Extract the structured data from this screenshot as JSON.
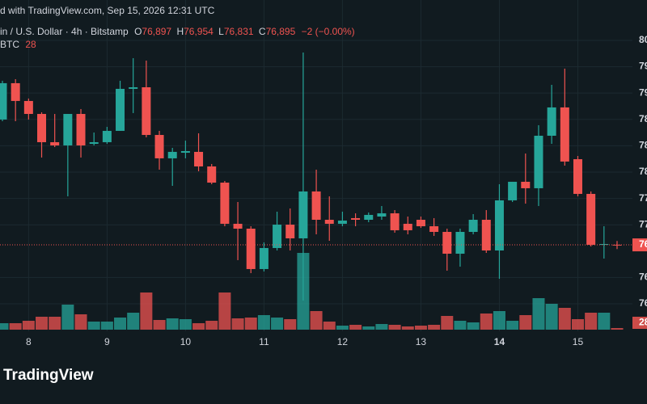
{
  "chart_data": {
    "type": "candlestick",
    "attribution": "d with TradingView.com, Sep 15, 2026 12:31 UTC",
    "symbol": "in / U.S. Dollar · 4h · Bitstamp",
    "ohlc_prefixes": [
      "O",
      "H",
      "L",
      "C"
    ],
    "ohlc_values": [
      "76,897",
      "76,954",
      "76,831",
      "76,895"
    ],
    "change": "−2 (−0.00%)",
    "volume_name": "BTC",
    "price_label": "76",
    "logo": "TradingView",
    "up_color": "#26a69a",
    "down_color": "#ef5350",
    "grid": true,
    "categories": [
      null,
      null,
      "8",
      null,
      null,
      null,
      null,
      null,
      "9",
      null,
      null,
      null,
      null,
      null,
      "10",
      null,
      null,
      null,
      null,
      null,
      "11",
      null,
      null,
      null,
      null,
      null,
      "12",
      null,
      null,
      null,
      null,
      null,
      "13",
      null,
      null,
      null,
      null,
      null,
      "14",
      null,
      null,
      null,
      null,
      null,
      "15",
      null,
      null,
      null
    ],
    "candles": [
      [
        78798,
        79387,
        78773,
        79350
      ],
      [
        79350,
        79411,
        78773,
        79080
      ],
      [
        79080,
        79117,
        78798,
        78883
      ],
      [
        78883,
        78908,
        78221,
        78454
      ],
      [
        78454,
        78883,
        78380,
        78405
      ],
      [
        78405,
        78883,
        77632,
        78883
      ],
      [
        78883,
        78957,
        78221,
        78405
      ],
      [
        78429,
        78601,
        78405,
        78454
      ],
      [
        78454,
        78687,
        78429,
        78626
      ],
      [
        78626,
        79387,
        78626,
        79264
      ],
      [
        79264,
        79730,
        78896,
        79288
      ],
      [
        79288,
        79693,
        78528,
        78564
      ],
      [
        78564,
        78626,
        78037,
        78209
      ],
      [
        78209,
        78368,
        77791,
        78307
      ],
      [
        78294,
        78478,
        78209,
        78319
      ],
      [
        78307,
        78589,
        78012,
        78086
      ],
      [
        78086,
        78123,
        77816,
        77840
      ],
      [
        77840,
        77865,
        77178,
        77215
      ],
      [
        77215,
        77546,
        76663,
        77141
      ],
      [
        77141,
        77178,
        76466,
        76528
      ],
      [
        76528,
        76933,
        76491,
        76847
      ],
      [
        76847,
        77399,
        76810,
        77202
      ],
      [
        77202,
        77448,
        76810,
        76994
      ],
      [
        76994,
        79816,
        76049,
        77706
      ],
      [
        77706,
        78037,
        77055,
        77276
      ],
      [
        77276,
        77632,
        76957,
        77215
      ],
      [
        77215,
        77399,
        77178,
        77264
      ],
      [
        77301,
        77374,
        77178,
        77276
      ],
      [
        77276,
        77387,
        77239,
        77350
      ],
      [
        77325,
        77485,
        77276,
        77374
      ],
      [
        77374,
        77423,
        77080,
        77117
      ],
      [
        77215,
        77325,
        77055,
        77117
      ],
      [
        77276,
        77325,
        77153,
        77178
      ],
      [
        77178,
        77301,
        77031,
        77092
      ],
      [
        77092,
        77141,
        76503,
        76761
      ],
      [
        76761,
        77141,
        76564,
        77092
      ],
      [
        77092,
        77362,
        77055,
        77276
      ],
      [
        77276,
        77423,
        76773,
        76810
      ],
      [
        76810,
        77816,
        76380,
        77571
      ],
      [
        77571,
        77853,
        77546,
        77853
      ],
      [
        77853,
        78282,
        77521,
        77755
      ],
      [
        77755,
        78712,
        77485,
        78552
      ],
      [
        78552,
        79325,
        78429,
        78982
      ],
      [
        78982,
        79571,
        78098,
        78160
      ],
      [
        78196,
        78245,
        77632,
        77669
      ],
      [
        77669,
        77706,
        76871,
        76896
      ],
      [
        76896,
        77178,
        76687,
        76908
      ],
      [
        76897,
        76954,
        76831,
        76895
      ]
    ],
    "volume": [
      112,
      112,
      154,
      224,
      224,
      434,
      266,
      140,
      140,
      210,
      294,
      644,
      168,
      196,
      182,
      112,
      154,
      644,
      196,
      210,
      252,
      210,
      182,
      1330,
      322,
      140,
      70,
      84,
      56,
      98,
      84,
      56,
      70,
      84,
      238,
      154,
      126,
      280,
      322,
      154,
      252,
      546,
      448,
      378,
      182,
      294,
      294,
      28
    ],
    "ylim": [
      75583,
      80613
    ],
    "yticks": [
      {
        "value": 80000,
        "label": "80"
      },
      {
        "value": 79600,
        "label": "79"
      },
      {
        "value": 79200,
        "label": "79"
      },
      {
        "value": 78800,
        "label": "78"
      },
      {
        "value": 78400,
        "label": "78"
      },
      {
        "value": 78000,
        "label": "78"
      },
      {
        "value": 77600,
        "label": "77"
      },
      {
        "value": 77200,
        "label": "77"
      },
      {
        "value": 76400,
        "label": "76"
      },
      {
        "value": 76000,
        "label": "76"
      }
    ],
    "vlim": [
      0,
      1400
    ]
  }
}
